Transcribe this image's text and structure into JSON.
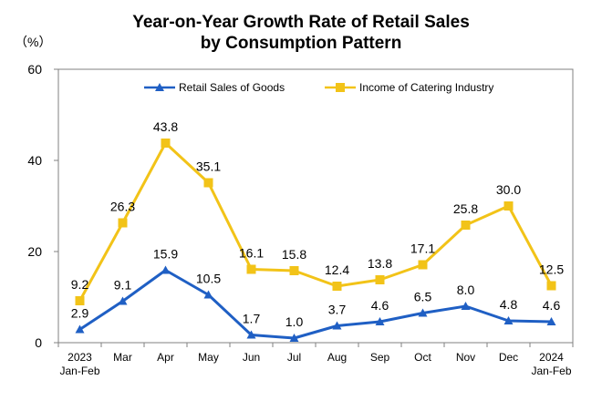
{
  "chart_data": {
    "type": "line",
    "title": [
      "Year-on-Year Growth Rate of Retail Sales",
      "by Consumption Pattern"
    ],
    "unit_label": "（%）",
    "categories": [
      "2023\nJan-Feb",
      "Mar",
      "Apr",
      "May",
      "Jun",
      "Jul",
      "Aug",
      "Sep",
      "Oct",
      "Nov",
      "Dec",
      "2024\nJan-Feb"
    ],
    "ylim": [
      0,
      60
    ],
    "yticks": [
      0,
      20,
      40,
      60
    ],
    "grid": false,
    "legend_position": "top",
    "series": [
      {
        "name": "Retail Sales of Goods",
        "color": "#1f5fc4",
        "marker": "triangle",
        "values": [
          2.9,
          9.1,
          15.9,
          10.5,
          1.7,
          1.0,
          3.7,
          4.6,
          6.5,
          8.0,
          4.8,
          4.6
        ]
      },
      {
        "name": "Income of Catering Industry",
        "color": "#f2c318",
        "marker": "square",
        "values": [
          9.2,
          26.3,
          43.8,
          35.1,
          16.1,
          15.8,
          12.4,
          13.8,
          17.1,
          25.8,
          30.0,
          12.5
        ]
      }
    ]
  }
}
